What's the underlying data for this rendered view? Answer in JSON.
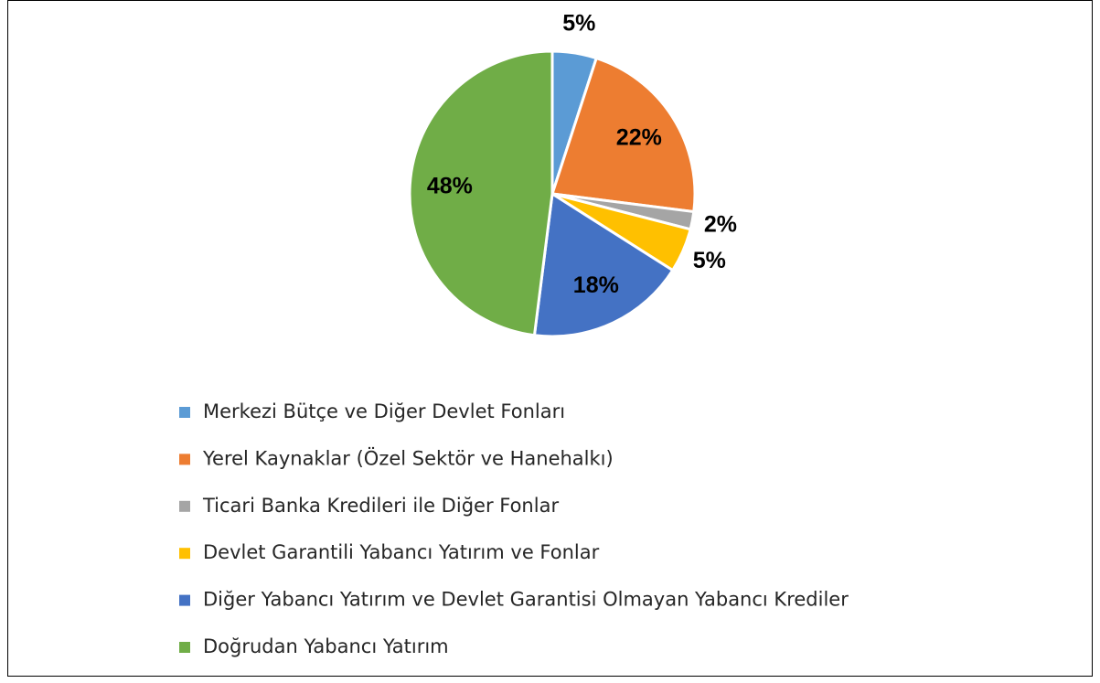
{
  "chart_data": {
    "type": "pie",
    "categories": [
      "Merkezi Bütçe ve Diğer Devlet Fonları",
      "Yerel Kaynaklar (Özel Sektör ve Hanehalkı)",
      "Ticari Banka Kredileri ile Diğer Fonlar",
      "Devlet Garantili Yabancı Yatırım ve Fonlar",
      "Diğer Yabancı Yatırım ve Devlet Garantisi Olmayan Yabancı Krediler",
      "Doğrudan Yabancı Yatırım"
    ],
    "values": [
      5,
      22,
      2,
      5,
      18,
      48
    ],
    "value_labels": [
      "5%",
      "22%",
      "2%",
      "5%",
      "18%",
      "48%"
    ],
    "colors": [
      "#5b9bd5",
      "#ed7d31",
      "#a5a5a5",
      "#ffc000",
      "#4472c4",
      "#70ad47"
    ],
    "legend": "bottom"
  }
}
